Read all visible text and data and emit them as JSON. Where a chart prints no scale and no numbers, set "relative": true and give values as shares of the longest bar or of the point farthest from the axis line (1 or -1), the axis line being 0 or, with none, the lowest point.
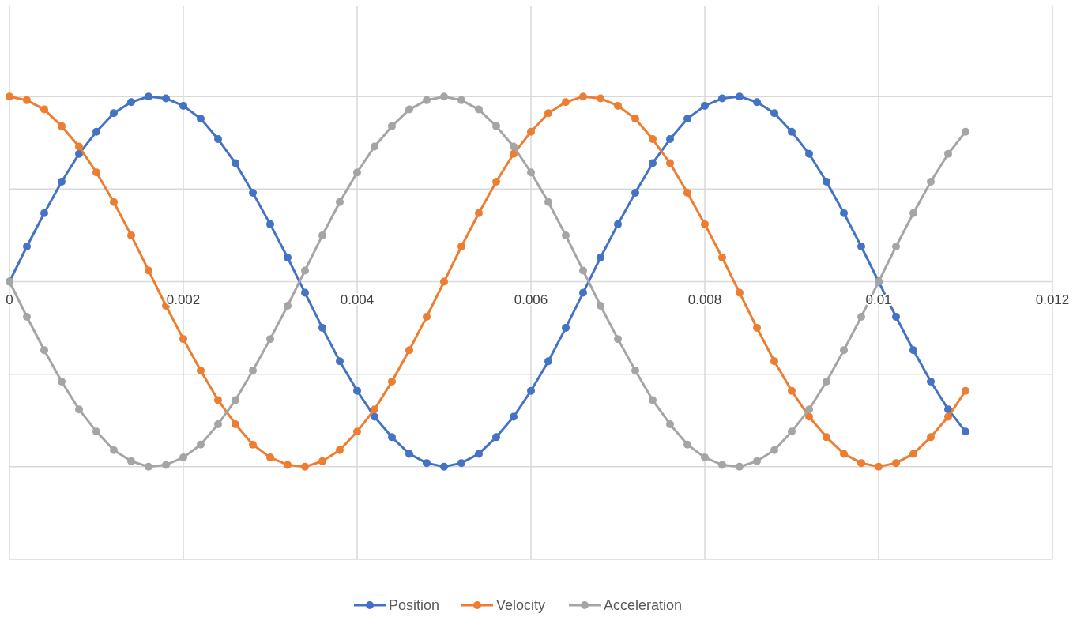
{
  "chart_data": {
    "type": "line",
    "relative": true,
    "grid": true,
    "legend": "bottom",
    "marker": "circle",
    "line_style": "solid",
    "x": [
      0,
      0.0002,
      0.0004,
      0.0006,
      0.0008,
      0.001,
      0.0012,
      0.0014,
      0.0016,
      0.0018,
      0.002,
      0.0022,
      0.0024,
      0.0026,
      0.0028,
      0.003,
      0.0032,
      0.0034,
      0.0036,
      0.0038,
      0.004,
      0.0042,
      0.0044,
      0.0046,
      0.0048,
      0.005,
      0.0052,
      0.0054,
      0.0056,
      0.0058,
      0.006,
      0.0062,
      0.0064,
      0.0066,
      0.0068,
      0.007,
      0.0072,
      0.0074,
      0.0076,
      0.0078,
      0.008,
      0.0082,
      0.0084,
      0.0086,
      0.0088,
      0.009,
      0.0092,
      0.0094,
      0.0096,
      0.0098,
      0.01,
      0.0102,
      0.0104,
      0.0106,
      0.0108,
      0.011
    ],
    "xlim": [
      0,
      0.012
    ],
    "xticks": [
      0,
      0.002,
      0.004,
      0.006,
      0.008,
      0.01,
      0.012
    ],
    "series": [
      {
        "name": "Position",
        "color": "#4472c4",
        "values": [
          0,
          0.19,
          0.37,
          0.54,
          0.69,
          0.81,
          0.91,
          0.97,
          1,
          0.99,
          0.95,
          0.88,
          0.77,
          0.64,
          0.48,
          0.31,
          0.13,
          -0.06,
          -0.25,
          -0.43,
          -0.59,
          -0.73,
          -0.84,
          -0.93,
          -0.98,
          -1,
          -0.98,
          -0.93,
          -0.84,
          -0.73,
          -0.59,
          -0.43,
          -0.25,
          -0.06,
          0.13,
          0.31,
          0.48,
          0.64,
          0.77,
          0.88,
          0.95,
          0.99,
          1,
          0.97,
          0.91,
          0.81,
          0.69,
          0.54,
          0.37,
          0.19,
          0,
          -0.19,
          -0.37,
          -0.54,
          -0.69,
          -0.81
        ]
      },
      {
        "name": "Velocity",
        "color": "#ed7d31",
        "values": [
          1,
          0.98,
          0.93,
          0.84,
          0.73,
          0.59,
          0.43,
          0.25,
          0.06,
          -0.13,
          -0.31,
          -0.48,
          -0.64,
          -0.77,
          -0.88,
          -0.95,
          -0.99,
          -1,
          -0.97,
          -0.91,
          -0.81,
          -0.69,
          -0.54,
          -0.37,
          -0.19,
          0,
          0.19,
          0.37,
          0.54,
          0.69,
          0.81,
          0.91,
          0.97,
          1,
          0.99,
          0.95,
          0.88,
          0.77,
          0.64,
          0.48,
          0.31,
          0.13,
          -0.06,
          -0.25,
          -0.43,
          -0.59,
          -0.73,
          -0.84,
          -0.93,
          -0.98,
          -1,
          -0.98,
          -0.93,
          -0.84,
          -0.73,
          -0.59
        ]
      },
      {
        "name": "Acceleration",
        "color": "#a5a5a5",
        "values": [
          0,
          -0.19,
          -0.37,
          -0.54,
          -0.69,
          -0.81,
          -0.91,
          -0.97,
          -1,
          -0.99,
          -0.95,
          -0.88,
          -0.77,
          -0.64,
          -0.48,
          -0.31,
          -0.13,
          0.06,
          0.25,
          0.43,
          0.59,
          0.73,
          0.84,
          0.93,
          0.98,
          1,
          0.98,
          0.93,
          0.84,
          0.73,
          0.59,
          0.43,
          0.25,
          0.06,
          -0.13,
          -0.31,
          -0.48,
          -0.64,
          -0.77,
          -0.88,
          -0.95,
          -0.99,
          -1,
          -0.97,
          -0.91,
          -0.81,
          -0.69,
          -0.54,
          -0.37,
          -0.19,
          0,
          0.19,
          0.37,
          0.54,
          0.69,
          0.81
        ]
      }
    ]
  }
}
